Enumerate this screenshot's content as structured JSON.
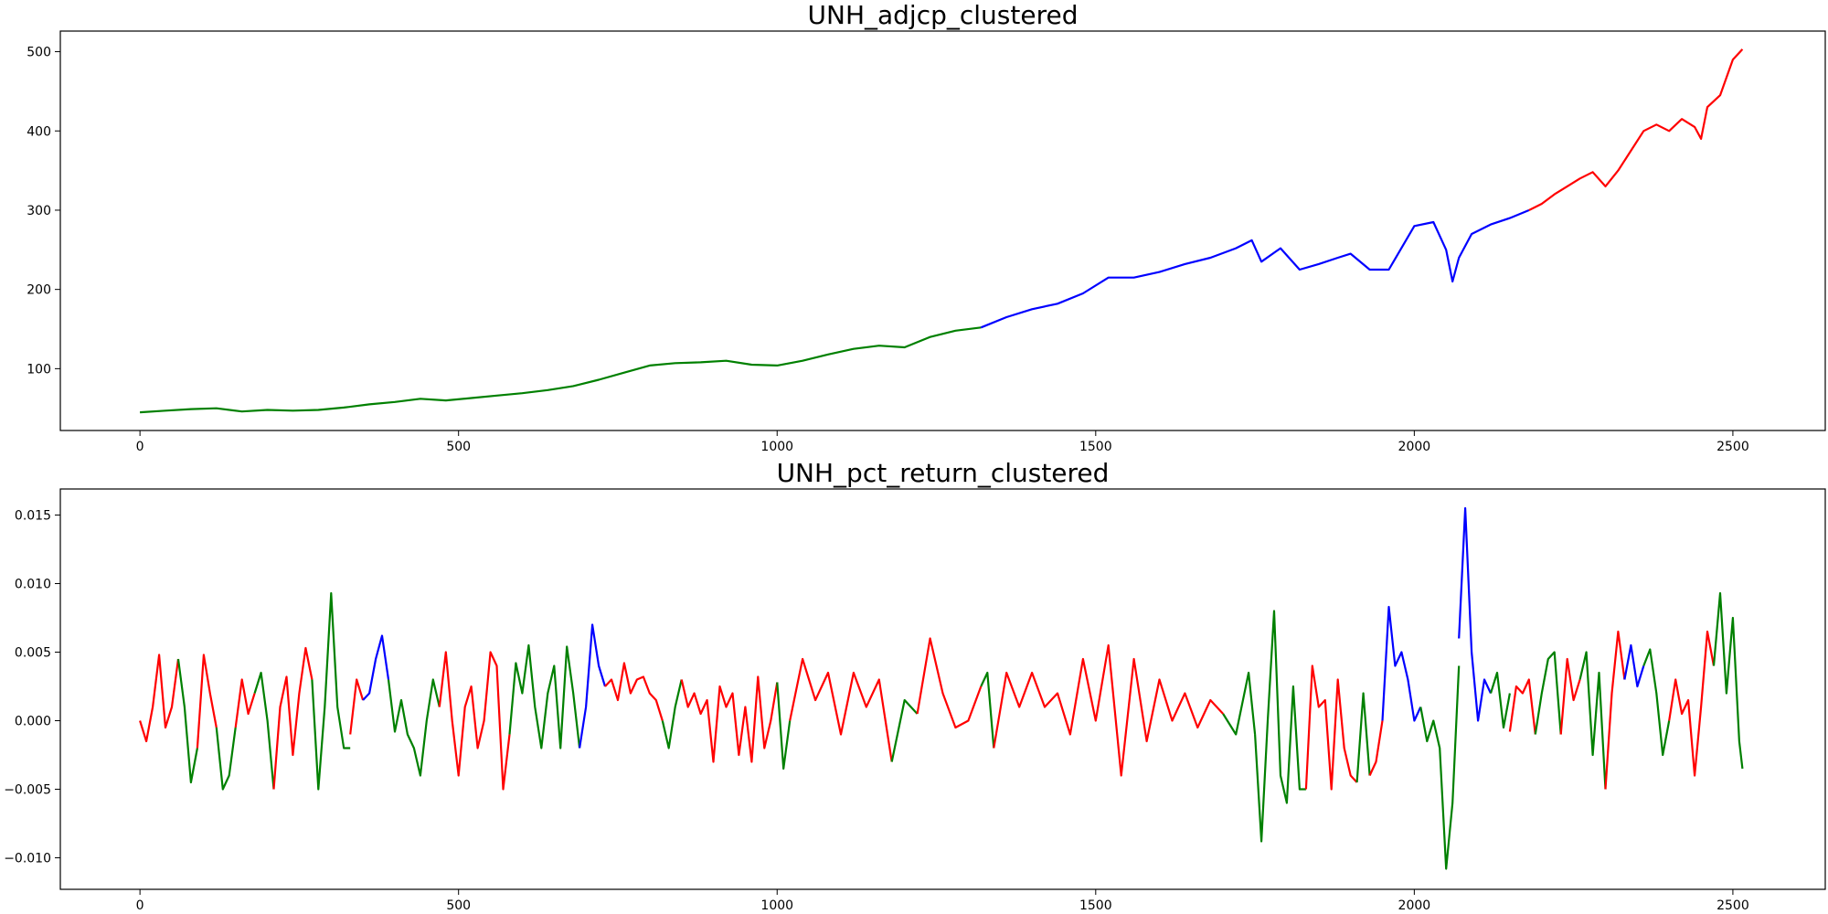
{
  "chart_data": [
    {
      "type": "line",
      "title": "UNH_adjcp_clustered",
      "xlabel": "",
      "ylabel": "",
      "xlim": [
        -125,
        2645
      ],
      "ylim": [
        22,
        526
      ],
      "xticks": [
        0,
        500,
        1000,
        1500,
        2000,
        2500
      ],
      "yticks": [
        100,
        200,
        300,
        400,
        500
      ],
      "ytick_decimals": 0,
      "grid": false,
      "legend": "none",
      "cluster_colors": {
        "0": "#008000",
        "1": "#0000ff",
        "2": "#ff0000"
      },
      "series": [
        {
          "cluster": 0,
          "x": [
            0,
            40,
            80,
            120,
            160,
            200,
            240,
            280,
            320,
            360,
            400,
            440,
            480,
            520,
            560,
            600,
            640,
            680,
            720,
            760,
            800,
            840,
            880,
            920,
            960,
            1000,
            1040,
            1080,
            1120,
            1160,
            1200,
            1240,
            1280,
            1320
          ],
          "y": [
            45,
            47,
            49,
            50,
            46,
            48,
            47,
            48,
            51,
            55,
            58,
            62,
            60,
            63,
            66,
            69,
            73,
            78,
            86,
            95,
            104,
            107,
            108,
            110,
            105,
            104,
            110,
            118,
            125,
            129,
            127,
            140,
            148,
            152
          ]
        },
        {
          "cluster": 1,
          "x": [
            1320,
            1360,
            1400,
            1440,
            1480,
            1520,
            1560,
            1600,
            1640,
            1680,
            1720,
            1745,
            1760,
            1790,
            1820,
            1850,
            1880,
            1900,
            1930,
            1960,
            2000,
            2030,
            2050,
            2060,
            2070,
            2090,
            2120,
            2150,
            2180
          ],
          "y": [
            152,
            165,
            175,
            182,
            195,
            215,
            215,
            222,
            232,
            240,
            252,
            262,
            235,
            252,
            225,
            232,
            240,
            245,
            225,
            225,
            280,
            285,
            250,
            210,
            240,
            270,
            282,
            290,
            300
          ]
        },
        {
          "cluster": 2,
          "x": [
            2180,
            2200,
            2220,
            2240,
            2260,
            2280,
            2300,
            2320,
            2340,
            2360,
            2380,
            2400,
            2420,
            2440,
            2450,
            2460,
            2480,
            2500,
            2515
          ],
          "y": [
            300,
            308,
            320,
            330,
            340,
            348,
            330,
            350,
            375,
            400,
            408,
            400,
            415,
            405,
            390,
            430,
            445,
            490,
            503
          ]
        }
      ]
    },
    {
      "type": "line",
      "title": "UNH_pct_return_clustered",
      "xlabel": "",
      "ylabel": "",
      "xlim": [
        -125,
        2645
      ],
      "ylim": [
        -0.0123,
        0.0169
      ],
      "xticks": [
        0,
        500,
        1000,
        1500,
        2000,
        2500
      ],
      "yticks": [
        -0.01,
        -0.005,
        0.0,
        0.005,
        0.01,
        0.015
      ],
      "ytick_decimals": 3,
      "grid": false,
      "legend": "none",
      "cluster_colors": {
        "0": "#008000",
        "1": "#0000ff",
        "2": "#ff0000"
      },
      "series": [
        {
          "cluster": 2,
          "x": [
            0,
            10,
            20,
            30,
            40,
            50,
            60
          ],
          "y": [
            0.0,
            -0.0015,
            0.001,
            0.0048,
            -0.0005,
            0.001,
            0.0045
          ]
        },
        {
          "cluster": 0,
          "x": [
            60,
            70,
            80,
            90
          ],
          "y": [
            0.0045,
            0.001,
            -0.0045,
            -0.002
          ]
        },
        {
          "cluster": 2,
          "x": [
            90,
            100,
            110,
            120
          ],
          "y": [
            -0.002,
            0.0048,
            0.002,
            -0.0005
          ]
        },
        {
          "cluster": 0,
          "x": [
            120,
            130,
            140,
            150
          ],
          "y": [
            -0.0005,
            -0.005,
            -0.004,
            -0.0005
          ]
        },
        {
          "cluster": 2,
          "x": [
            150,
            160,
            170,
            180
          ],
          "y": [
            -0.0005,
            0.003,
            0.0005,
            0.002
          ]
        },
        {
          "cluster": 0,
          "x": [
            180,
            190,
            200,
            210
          ],
          "y": [
            0.002,
            0.0035,
            0.0,
            -0.005
          ]
        },
        {
          "cluster": 2,
          "x": [
            210,
            220,
            230,
            240,
            250,
            260,
            270
          ],
          "y": [
            -0.005,
            0.001,
            0.0032,
            -0.0025,
            0.002,
            0.0053,
            0.003
          ]
        },
        {
          "cluster": 0,
          "x": [
            270,
            280,
            290,
            300,
            310,
            320,
            330
          ],
          "y": [
            0.003,
            -0.005,
            0.001,
            0.0093,
            0.001,
            -0.002,
            -0.002
          ]
        },
        {
          "cluster": 2,
          "x": [
            330,
            340,
            350
          ],
          "y": [
            -0.001,
            0.003,
            0.0015
          ]
        },
        {
          "cluster": 1,
          "x": [
            350,
            360,
            370,
            380,
            390
          ],
          "y": [
            0.0015,
            0.002,
            0.0045,
            0.0062,
            0.003
          ]
        },
        {
          "cluster": 0,
          "x": [
            390,
            400,
            410,
            420,
            430,
            440,
            450,
            460,
            470
          ],
          "y": [
            0.003,
            -0.0008,
            0.0015,
            -0.001,
            -0.002,
            -0.004,
            0.0,
            0.003,
            0.001
          ]
        },
        {
          "cluster": 2,
          "x": [
            470,
            480,
            490,
            500,
            510,
            520,
            530,
            540,
            550,
            560,
            570,
            580
          ],
          "y": [
            0.001,
            0.005,
            0.0,
            -0.004,
            0.001,
            0.0025,
            -0.002,
            0.0,
            0.005,
            0.004,
            -0.005,
            -0.001
          ]
        },
        {
          "cluster": 0,
          "x": [
            580,
            590,
            600,
            610,
            620,
            630,
            640,
            650,
            660,
            670,
            680,
            690
          ],
          "y": [
            -0.001,
            0.0042,
            0.002,
            0.0055,
            0.001,
            -0.002,
            0.002,
            0.004,
            -0.002,
            0.0054,
            0.002,
            -0.002
          ]
        },
        {
          "cluster": 1,
          "x": [
            690,
            700,
            710,
            720,
            730
          ],
          "y": [
            -0.002,
            0.001,
            0.007,
            0.004,
            0.0025
          ]
        },
        {
          "cluster": 2,
          "x": [
            730,
            740,
            750,
            760,
            770,
            780,
            790,
            800,
            810,
            820
          ],
          "y": [
            0.0025,
            0.003,
            0.0015,
            0.0042,
            0.002,
            0.003,
            0.0032,
            0.002,
            0.0015,
            0.0
          ]
        },
        {
          "cluster": 0,
          "x": [
            820,
            830,
            840,
            850
          ],
          "y": [
            0.0,
            -0.002,
            0.001,
            0.003
          ]
        },
        {
          "cluster": 2,
          "x": [
            850,
            860,
            870,
            880,
            890,
            900,
            910,
            920,
            930,
            940,
            950,
            960,
            970,
            980,
            990,
            1000
          ],
          "y": [
            0.003,
            0.001,
            0.002,
            0.0005,
            0.0015,
            -0.003,
            0.0025,
            0.001,
            0.002,
            -0.0025,
            0.001,
            -0.003,
            0.0032,
            -0.002,
            0.0,
            0.0028
          ]
        },
        {
          "cluster": 0,
          "x": [
            1000,
            1010,
            1020
          ],
          "y": [
            0.0028,
            -0.0035,
            0.0
          ]
        },
        {
          "cluster": 2,
          "x": [
            1020,
            1040,
            1060,
            1080,
            1100,
            1120,
            1140,
            1160,
            1180
          ],
          "y": [
            0.0,
            0.0045,
            0.0015,
            0.0035,
            -0.001,
            0.0035,
            0.001,
            0.003,
            -0.003
          ]
        },
        {
          "cluster": 0,
          "x": [
            1180,
            1200,
            1220
          ],
          "y": [
            -0.003,
            0.0015,
            0.0005
          ]
        },
        {
          "cluster": 2,
          "x": [
            1220,
            1240,
            1260,
            1280,
            1300,
            1320
          ],
          "y": [
            0.0005,
            0.006,
            0.002,
            -0.0005,
            0.0,
            0.0025
          ]
        },
        {
          "cluster": 0,
          "x": [
            1320,
            1330,
            1340
          ],
          "y": [
            0.0025,
            0.0035,
            -0.002
          ]
        },
        {
          "cluster": 2,
          "x": [
            1340,
            1360,
            1380,
            1400,
            1420,
            1440,
            1460,
            1480,
            1500,
            1520,
            1540,
            1560,
            1580,
            1600,
            1620,
            1640,
            1660,
            1680,
            1700
          ],
          "y": [
            -0.002,
            0.0035,
            0.001,
            0.0035,
            0.001,
            0.002,
            -0.001,
            0.0045,
            0.0,
            0.0055,
            -0.004,
            0.0045,
            -0.0015,
            0.003,
            0.0,
            0.002,
            -0.0005,
            0.0015,
            0.0005
          ]
        },
        {
          "cluster": 0,
          "x": [
            1700,
            1720,
            1740,
            1750
          ],
          "y": [
            0.0005,
            -0.001,
            0.0035,
            -0.001
          ]
        },
        {
          "cluster": 0,
          "x": [
            1750,
            1760,
            1770,
            1780,
            1790,
            1800,
            1810,
            1820,
            1830
          ],
          "y": [
            -0.001,
            -0.0088,
            0.0,
            0.008,
            -0.004,
            -0.006,
            0.0025,
            -0.005,
            -0.005
          ]
        },
        {
          "cluster": 2,
          "x": [
            1830,
            1840,
            1850,
            1860,
            1870,
            1880,
            1890,
            1900,
            1910
          ],
          "y": [
            -0.005,
            0.004,
            0.001,
            0.0015,
            -0.005,
            0.003,
            -0.002,
            -0.004,
            -0.0045
          ]
        },
        {
          "cluster": 0,
          "x": [
            1910,
            1920,
            1930
          ],
          "y": [
            -0.0045,
            0.002,
            -0.004
          ]
        },
        {
          "cluster": 2,
          "x": [
            1930,
            1940,
            1950
          ],
          "y": [
            -0.004,
            -0.003,
            0.0
          ]
        },
        {
          "cluster": 1,
          "x": [
            1950,
            1960,
            1970,
            1980,
            1990,
            2000,
            2010
          ],
          "y": [
            0.0,
            0.0083,
            0.004,
            0.005,
            0.003,
            0.0,
            0.001
          ]
        },
        {
          "cluster": 0,
          "x": [
            2010,
            2020,
            2030,
            2040,
            2050,
            2060,
            2070
          ],
          "y": [
            0.001,
            -0.0015,
            0.0,
            -0.002,
            -0.0108,
            -0.006,
            0.004
          ]
        },
        {
          "cluster": 1,
          "x": [
            2070,
            2080,
            2090,
            2100,
            2110,
            2120
          ],
          "y": [
            0.006,
            0.0155,
            0.005,
            0.0,
            0.003,
            0.002
          ]
        },
        {
          "cluster": 0,
          "x": [
            2120,
            2130,
            2140,
            2150
          ],
          "y": [
            0.002,
            0.0035,
            -0.0005,
            0.002
          ]
        },
        {
          "cluster": 2,
          "x": [
            2150,
            2160,
            2170,
            2180,
            2190
          ],
          "y": [
            -0.0008,
            0.0025,
            0.002,
            0.003,
            -0.001
          ]
        },
        {
          "cluster": 0,
          "x": [
            2190,
            2200,
            2210,
            2220,
            2230
          ],
          "y": [
            -0.001,
            0.002,
            0.0045,
            0.005,
            -0.001
          ]
        },
        {
          "cluster": 2,
          "x": [
            2230,
            2240,
            2250,
            2260
          ],
          "y": [
            -0.001,
            0.0045,
            0.0015,
            0.003
          ]
        },
        {
          "cluster": 0,
          "x": [
            2260,
            2270,
            2280,
            2290,
            2300
          ],
          "y": [
            0.003,
            0.005,
            -0.0025,
            0.0035,
            -0.005
          ]
        },
        {
          "cluster": 2,
          "x": [
            2300,
            2310,
            2320,
            2330
          ],
          "y": [
            -0.005,
            0.002,
            0.0065,
            0.003
          ]
        },
        {
          "cluster": 1,
          "x": [
            2330,
            2340,
            2350,
            2360
          ],
          "y": [
            0.003,
            0.0055,
            0.0025,
            0.004
          ]
        },
        {
          "cluster": 0,
          "x": [
            2360,
            2370,
            2380,
            2390,
            2400
          ],
          "y": [
            0.004,
            0.0052,
            0.002,
            -0.0025,
            0.0
          ]
        },
        {
          "cluster": 2,
          "x": [
            2400,
            2410,
            2420,
            2430,
            2440,
            2450,
            2460,
            2470
          ],
          "y": [
            0.0,
            0.003,
            0.0005,
            0.0015,
            -0.004,
            0.001,
            0.0065,
            0.004
          ]
        },
        {
          "cluster": 0,
          "x": [
            2470,
            2480,
            2490,
            2500,
            2510,
            2515
          ],
          "y": [
            0.004,
            0.0093,
            0.002,
            0.0075,
            -0.0015,
            -0.0035
          ]
        }
      ]
    }
  ]
}
